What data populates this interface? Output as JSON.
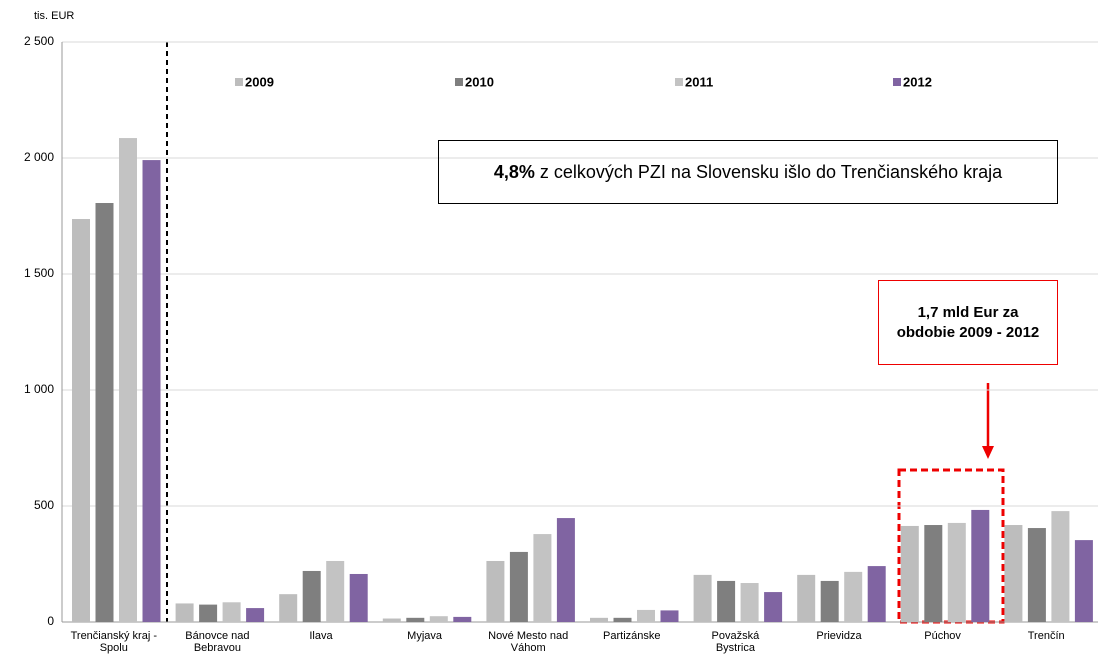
{
  "chart_data": {
    "type": "bar",
    "y_axis_label": "tis. EUR",
    "categories": [
      "Trenčianský kraj - Spolu",
      "Bánovce nad Bebravou",
      "Ilava",
      "Myjava",
      "Nové Mesto nad Váhom",
      "Partizánske",
      "Považská Bystrica",
      "Prievidza",
      "Púchov",
      "Trenčín"
    ],
    "series": [
      {
        "name": "2009",
        "color": "#bdbdbd",
        "values": [
          1737,
          80,
          120,
          15,
          263,
          18,
          203,
          203,
          414,
          418
        ]
      },
      {
        "name": "2010",
        "color": "#7f7f7f",
        "values": [
          1806,
          75,
          220,
          18,
          302,
          18,
          177,
          177,
          418,
          405
        ]
      },
      {
        "name": "2011",
        "color": "#c3c3c3",
        "values": [
          2086,
          85,
          263,
          25,
          379,
          52,
          168,
          216,
          427,
          478
        ]
      },
      {
        "name": "2012",
        "color": "#8064a2",
        "values": [
          1991,
          60,
          207,
          22,
          448,
          50,
          129,
          241,
          483,
          353
        ]
      }
    ],
    "ylim": [
      0,
      2500
    ],
    "yticks": [
      0,
      500,
      {
        "value": 1000,
        "label": "1 000"
      },
      {
        "value": 1500,
        "label": "1 500"
      },
      {
        "value": 2000,
        "label": "2 000"
      },
      {
        "value": 2500,
        "label": "2 500"
      }
    ],
    "grid": true,
    "legend": "top",
    "annotations": {
      "share_bold": "4,8%",
      "share_text": " z celkových PZI na Slovensku išlo do Trenčianského kraja",
      "total_lines": [
        "1,7 mld Eur za",
        "obdobie 2009 - 2012"
      ]
    }
  }
}
